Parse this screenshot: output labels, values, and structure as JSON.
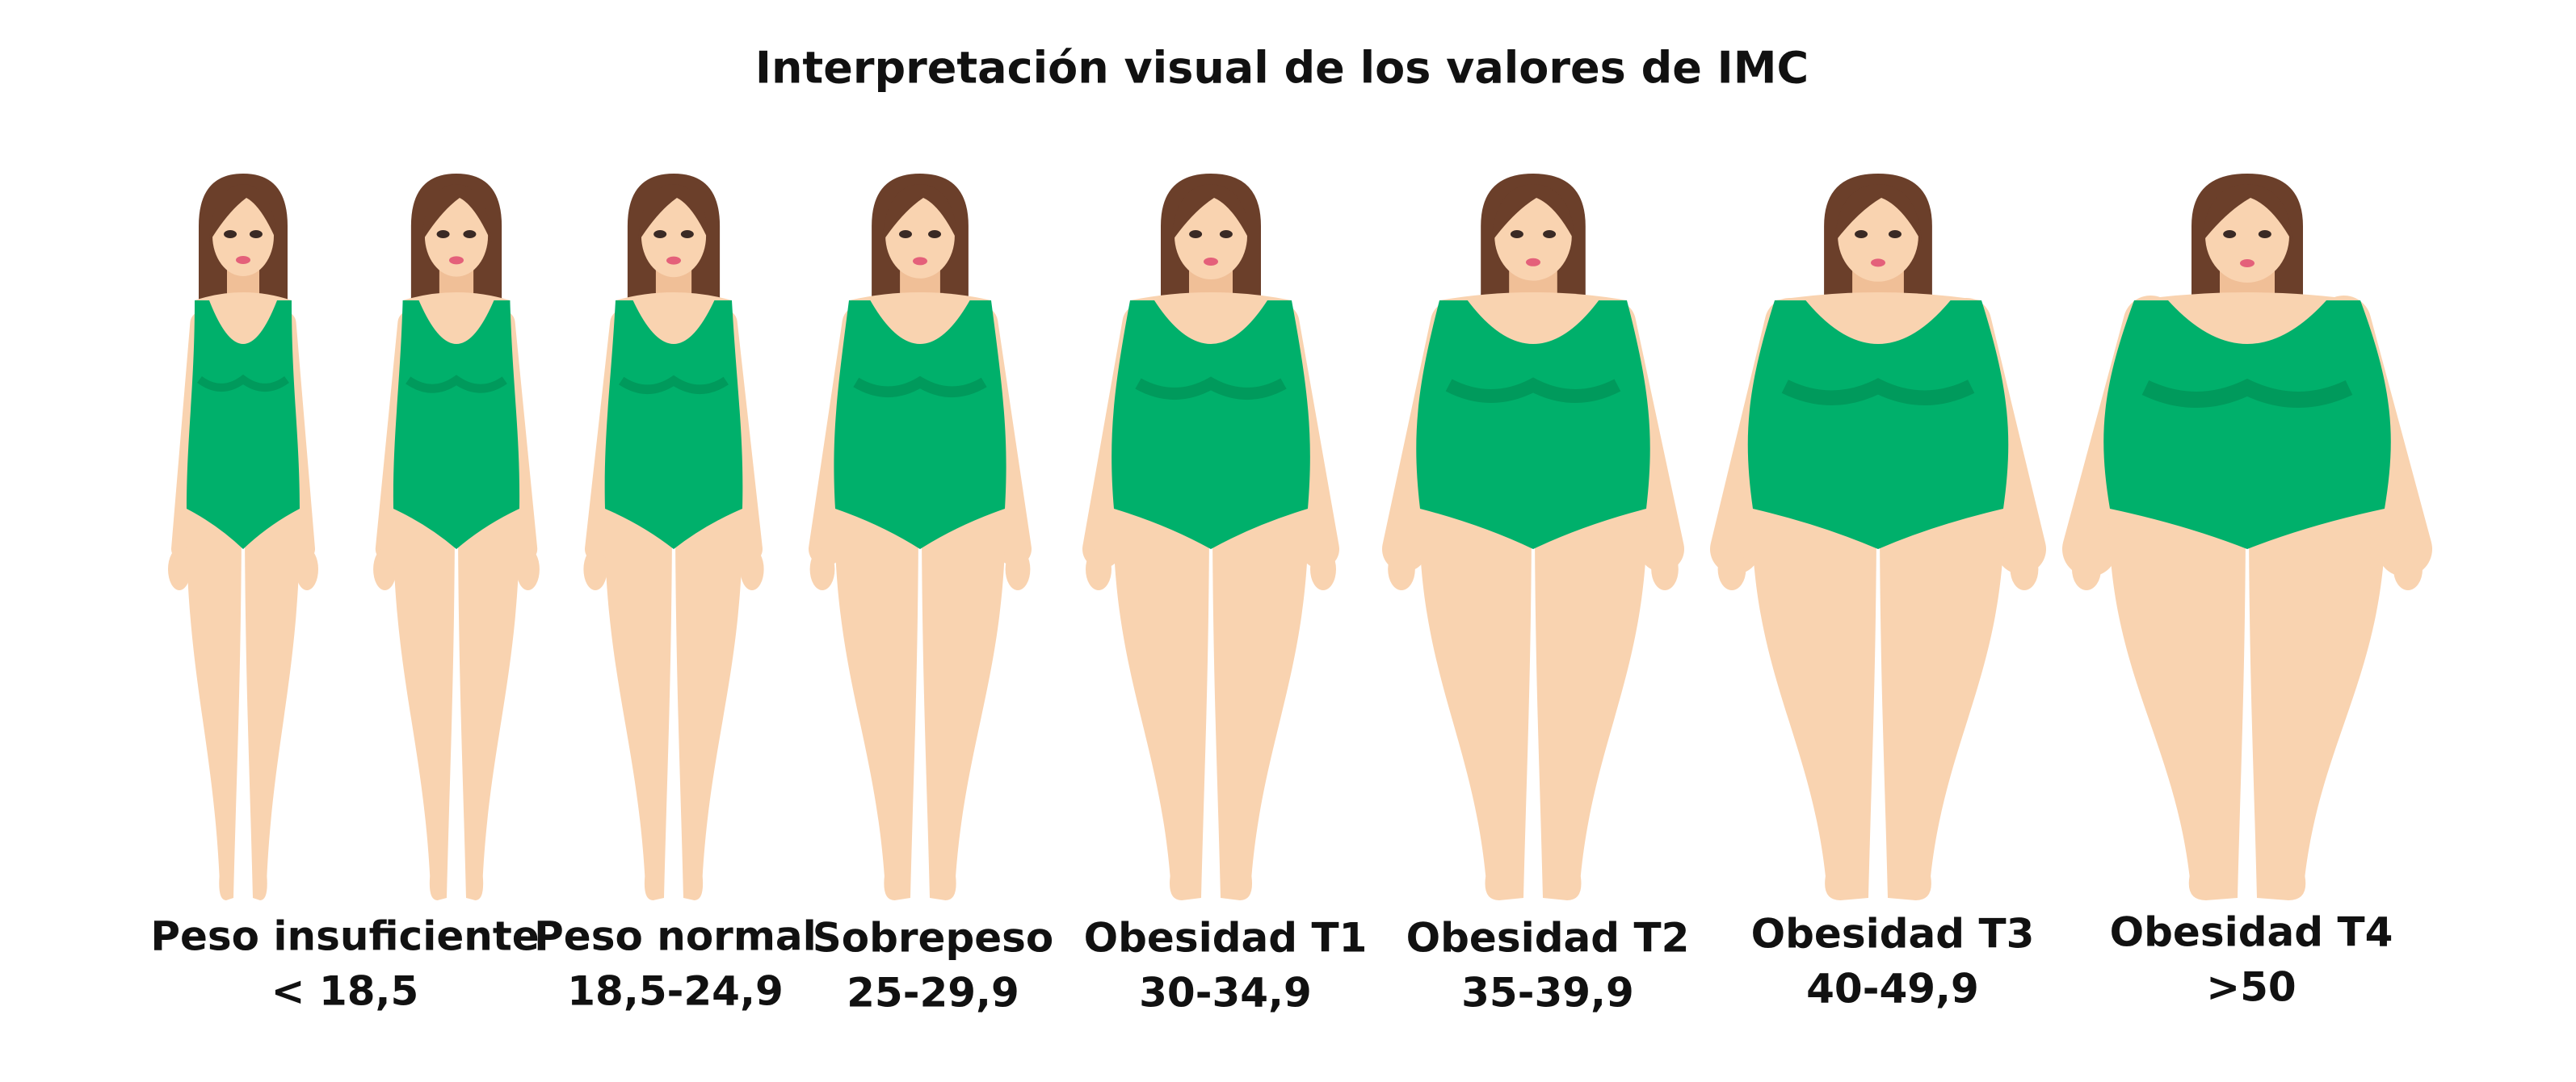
{
  "title": "Interpretación visual de los valores de IMC",
  "categories": [
    {
      "name": "Peso insuficiente",
      "range": "< 18,5"
    },
    {
      "name": "Peso normal",
      "range": "18,5-24,9"
    },
    {
      "name": "Sobrepeso",
      "range": "25-29,9"
    },
    {
      "name": "Obesidad T1",
      "range": "30-34,9"
    },
    {
      "name": "Obesidad T2",
      "range": "35-39,9"
    },
    {
      "name": "Obesidad T3",
      "range": "40-49,9"
    },
    {
      "name": "Obesidad T4",
      "range": ">50"
    }
  ]
}
